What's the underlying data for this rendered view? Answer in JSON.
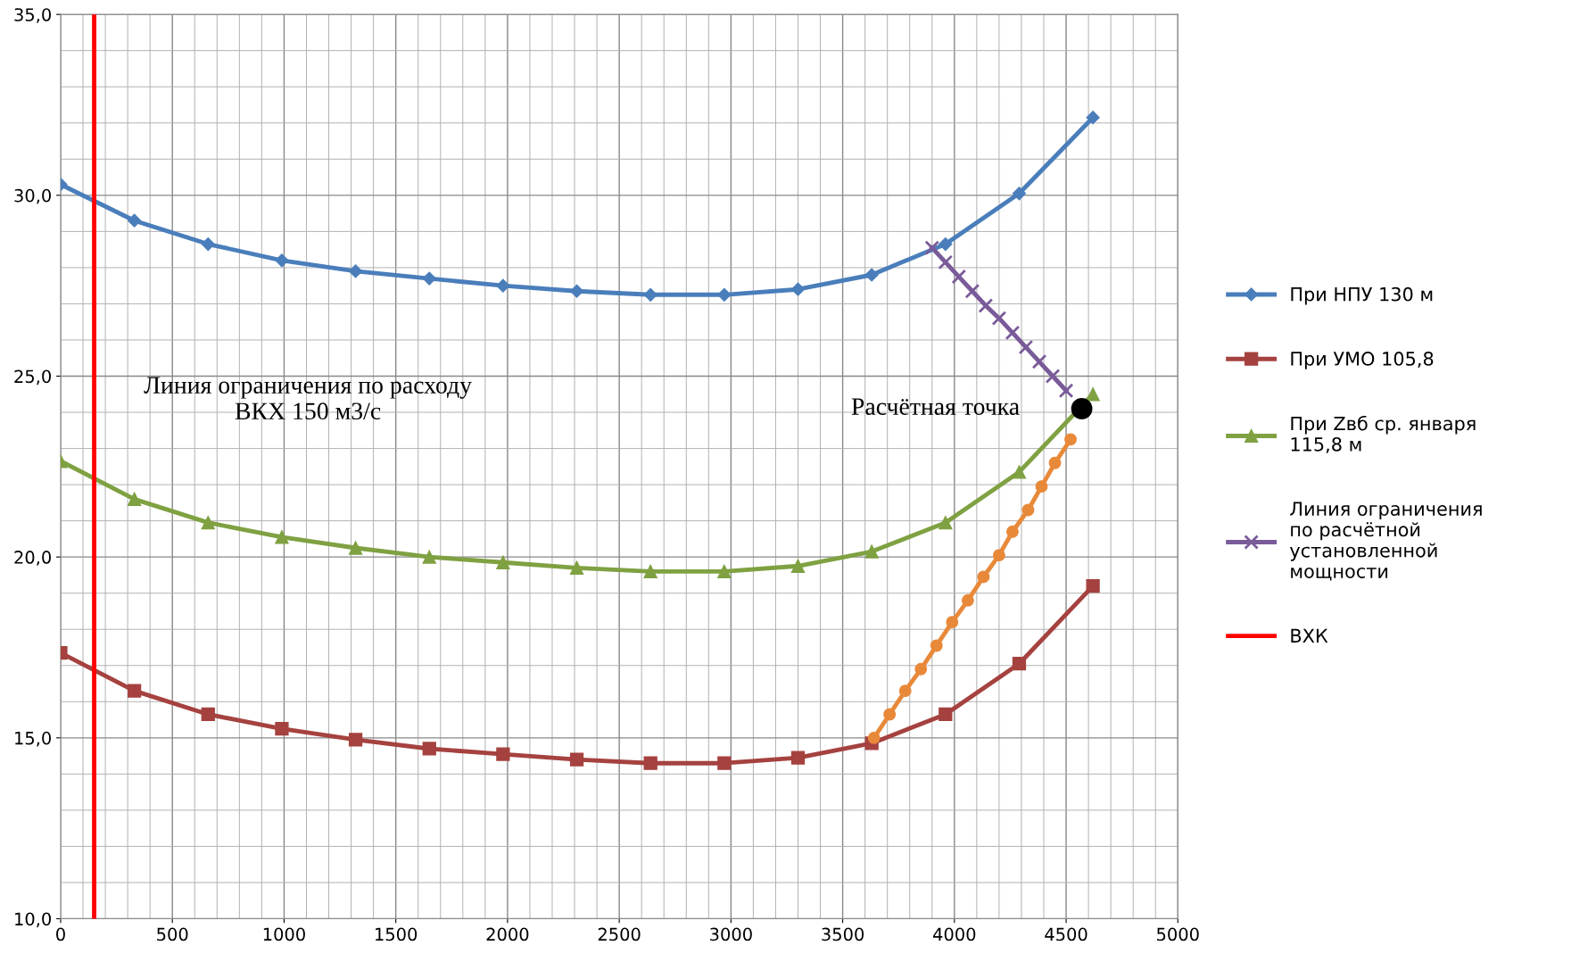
{
  "chart_data": {
    "type": "line",
    "xlim": [
      0,
      5000
    ],
    "xticks": [
      0,
      500,
      1000,
      1500,
      2000,
      2500,
      3000,
      3500,
      4000,
      4500,
      5000
    ],
    "ylim": [
      10,
      35
    ],
    "yticks": [
      {
        "value": 10,
        "label": "10,0"
      },
      {
        "value": 15,
        "label": "15,0"
      },
      {
        "value": 20,
        "label": "20,0"
      },
      {
        "value": 25,
        "label": "25,0"
      },
      {
        "value": 30,
        "label": "30,0"
      },
      {
        "value": 35,
        "label": "35,0"
      }
    ],
    "grid": true,
    "legend": "right",
    "series": [
      {
        "name": "При НПУ 130 м",
        "color": "#4a7ebb",
        "marker": "diamond",
        "x": [
          0,
          330,
          660,
          990,
          1320,
          1650,
          1980,
          2310,
          2640,
          2970,
          3300,
          3630,
          3960,
          4290,
          4620
        ],
        "values": [
          30.3,
          29.3,
          28.65,
          28.2,
          27.9,
          27.7,
          27.5,
          27.35,
          27.25,
          27.25,
          27.4,
          27.8,
          28.65,
          30.05,
          32.15
        ]
      },
      {
        "name": "При УМО 105,8",
        "color": "#a5423f",
        "marker": "square",
        "x": [
          0,
          330,
          660,
          990,
          1320,
          1650,
          1980,
          2310,
          2640,
          2970,
          3300,
          3630,
          3960,
          4290,
          4620
        ],
        "values": [
          17.35,
          16.3,
          15.65,
          15.25,
          14.95,
          14.7,
          14.55,
          14.4,
          14.3,
          14.3,
          14.45,
          14.85,
          15.65,
          17.05,
          19.2
        ]
      },
      {
        "name": "При Zвб ср. января 115,8 м",
        "color": "#7fa142",
        "marker": "triangle",
        "x": [
          0,
          330,
          660,
          990,
          1320,
          1650,
          1980,
          2310,
          2640,
          2970,
          3300,
          3630,
          3960,
          4290,
          4620
        ],
        "values": [
          22.65,
          21.6,
          20.95,
          20.55,
          20.25,
          20.0,
          19.85,
          19.7,
          19.6,
          19.6,
          19.75,
          20.15,
          20.95,
          22.35,
          24.5
        ]
      },
      {
        "name": "Линия ограничения по расчётной установленной мощности",
        "color": "#7a5b99",
        "marker": "cross",
        "x": [
          3900,
          3960,
          4020,
          4080,
          4140,
          4200,
          4260,
          4320,
          4380,
          4440,
          4500
        ],
        "values": [
          28.55,
          28.15,
          27.75,
          27.35,
          26.95,
          26.6,
          26.2,
          25.8,
          25.4,
          25.0,
          24.6
        ]
      },
      {
        "name": "ВХК",
        "color": "#ff0000",
        "marker": "none",
        "x": [
          150,
          150
        ],
        "values": [
          10,
          35
        ]
      },
      {
        "color": "#e8893a",
        "marker": "circle",
        "x": [
          3640,
          3710,
          3780,
          3850,
          3920,
          3990,
          4060,
          4130,
          4200,
          4260,
          4330,
          4390,
          4450,
          4520
        ],
        "values": [
          15.0,
          15.65,
          16.3,
          16.9,
          17.55,
          18.2,
          18.8,
          19.45,
          20.05,
          20.7,
          21.3,
          21.95,
          22.6,
          23.25
        ]
      },
      {
        "type": "scatter",
        "color": "#000000",
        "marker": "circle",
        "x": [
          4570
        ],
        "values": [
          24.1
        ]
      }
    ],
    "annotations": [
      {
        "text": "Линия ограничения по расходу\nВКХ 150 м3/с",
        "x": 150,
        "y": 25
      },
      {
        "text": "Расчётная точка",
        "x": 4570,
        "y": 24.1
      }
    ]
  }
}
